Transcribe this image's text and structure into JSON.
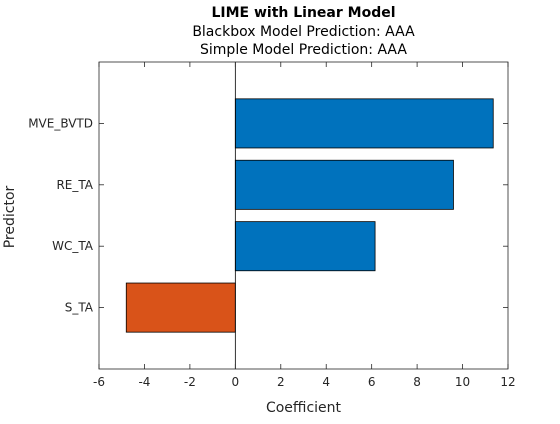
{
  "chart_data": {
    "type": "bar",
    "orientation": "horizontal",
    "title": "LIME with Linear Model",
    "subtitle_lines": [
      "Blackbox Model Prediction: AAA",
      "Simple Model Prediction: AAA"
    ],
    "xlabel": "Coefficient",
    "ylabel": "Predictor",
    "categories": [
      "MVE_BVTD",
      "RE_TA",
      "WC_TA",
      "S_TA"
    ],
    "values": [
      11.35,
      9.6,
      6.15,
      -4.8
    ],
    "xlim": [
      -6,
      12
    ],
    "xticks": [
      -6,
      -4,
      -2,
      0,
      2,
      4,
      6,
      8,
      10,
      12
    ],
    "grid": false,
    "colors": {
      "positive": "#0072BD",
      "negative": "#D95319",
      "axis": "#262626",
      "zero_line": "#000000"
    }
  }
}
